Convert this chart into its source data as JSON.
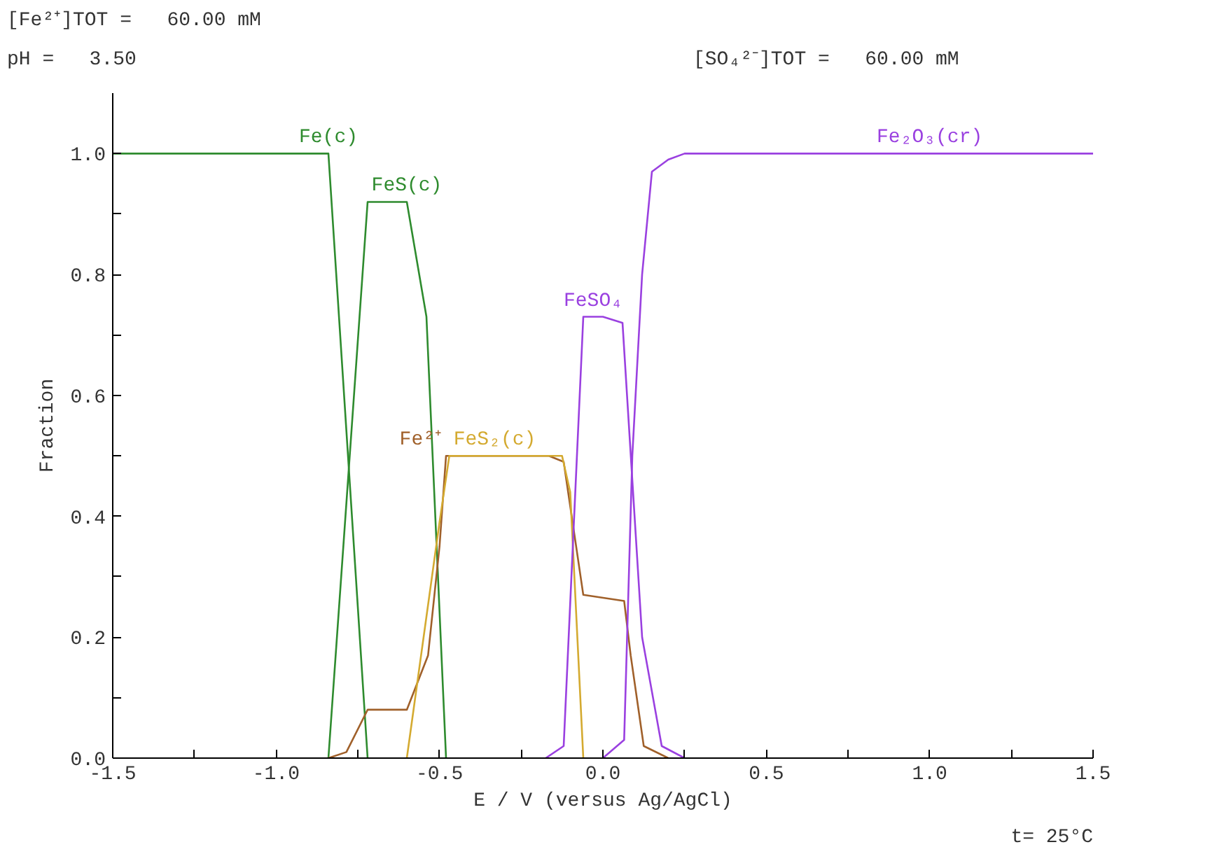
{
  "chart_data": {
    "type": "line",
    "xlabel": "E / V (versus Ag/AgCl)",
    "ylabel": "Fraction",
    "xlim": [
      -1.5,
      1.5
    ],
    "ylim": [
      0,
      1.1
    ],
    "xticks": [
      {
        "value": -1.5,
        "label": "-1.5"
      },
      {
        "value": -1.25,
        "label": null
      },
      {
        "value": -1.0,
        "label": "-1.0"
      },
      {
        "value": -0.75,
        "label": null
      },
      {
        "value": -0.5,
        "label": "-0.5"
      },
      {
        "value": -0.25,
        "label": null
      },
      {
        "value": 0,
        "label": "0.0"
      },
      {
        "value": 0.25,
        "label": null
      },
      {
        "value": 0.5,
        "label": "0.5"
      },
      {
        "value": 0.75,
        "label": null
      },
      {
        "value": 1.0,
        "label": "1.0"
      },
      {
        "value": 1.25,
        "label": null
      },
      {
        "value": 1.5,
        "label": "1.5"
      }
    ],
    "yticks": [
      {
        "value": 0,
        "label": "0.0"
      },
      {
        "value": 0.1,
        "label": null
      },
      {
        "value": 0.2,
        "label": "0.2"
      },
      {
        "value": 0.3,
        "label": null
      },
      {
        "value": 0.4,
        "label": "0.4"
      },
      {
        "value": 0.5,
        "label": null
      },
      {
        "value": 0.6,
        "label": "0.6"
      },
      {
        "value": 0.7,
        "label": null
      },
      {
        "value": 0.8,
        "label": "0.8"
      },
      {
        "value": 0.9,
        "label": null
      },
      {
        "value": 1.0,
        "label": "1.0"
      }
    ],
    "grid": false,
    "series": [
      {
        "color": "#2e8b2e",
        "x": [
          -1.5,
          -0.84,
          -0.72
        ],
        "values": [
          1.0,
          1.0,
          0
        ]
      },
      {
        "color": "#2e8b2e",
        "x": [
          -0.84,
          -0.72,
          -0.6,
          -0.54,
          -0.48
        ],
        "values": [
          0,
          0.92,
          0.92,
          0.73,
          0
        ]
      },
      {
        "color": "#a0602a",
        "x": [
          -0.84,
          -0.785,
          -0.72,
          -0.6,
          -0.535,
          -0.5,
          -0.48,
          -0.165,
          -0.12,
          -0.06,
          0.065,
          0.085,
          0.125,
          0.2
        ],
        "values": [
          0,
          0.01,
          0.08,
          0.08,
          0.17,
          0.35,
          0.5,
          0.5,
          0.49,
          0.27,
          0.26,
          0.17,
          0.02,
          0
        ]
      },
      {
        "color": "#d4aa30",
        "x": [
          -0.6,
          -0.5,
          -0.47,
          -0.125,
          -0.1,
          -0.06
        ],
        "values": [
          0,
          0.39,
          0.5,
          0.5,
          0.44,
          0
        ]
      },
      {
        "color": "#9a40e0",
        "x": [
          -0.175,
          -0.12,
          -0.06,
          0.0,
          0.06,
          0.12,
          0.18,
          0.25
        ],
        "values": [
          0,
          0.02,
          0.73,
          0.73,
          0.72,
          0.2,
          0.02,
          0
        ]
      },
      {
        "color": "#9a40e0",
        "x": [
          0.0,
          0.065,
          0.09,
          0.12,
          0.15,
          0.2,
          0.25,
          1.5
        ],
        "values": [
          0,
          0.03,
          0.5,
          0.8,
          0.97,
          0.99,
          1.0,
          1.0
        ]
      }
    ],
    "annotations": [
      "[Fe²⁺]TOT =   60.00 mM",
      "pH =   3.50",
      "[SO₄²⁻]TOT =   60.00 mM",
      "t= 25°C",
      {
        "text": "Fe(c)",
        "x": -0.84,
        "y": 1.0
      },
      {
        "text": "FeS(c)",
        "x": -0.6,
        "y": 0.92
      },
      {
        "text": "Fe²⁺",
        "x": -0.48,
        "y": 0.5
      },
      {
        "text": "FeS₂(c)",
        "x": -0.47,
        "y": 0.5
      },
      {
        "text": "FeSO₄",
        "x": -0.03,
        "y": 0.73
      },
      {
        "text": "Fe₂O₃(cr)",
        "x": 1.0,
        "y": 1.0
      }
    ]
  }
}
